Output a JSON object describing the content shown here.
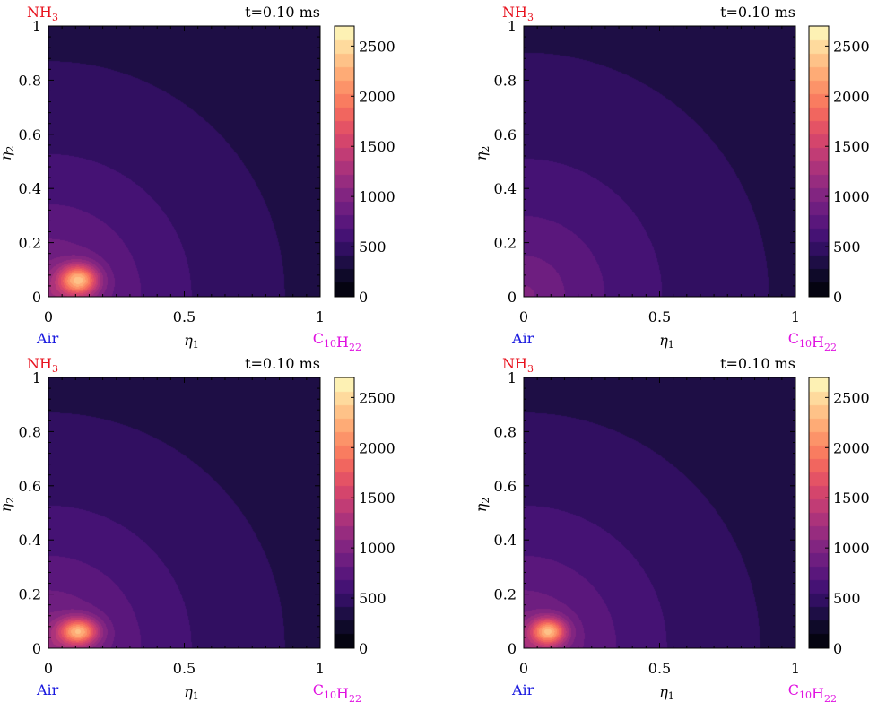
{
  "colors": {
    "nh3": "#e8131f",
    "air": "#1a1adf",
    "fuel": "#e011e0",
    "text": "#000000"
  },
  "chart_data": [
    {
      "type": "heatmap",
      "title": "t=0.10 ms",
      "x_label": "η1",
      "y_label": "η2",
      "corner_labels": {
        "top_left": "NH3",
        "bottom_left": "Air",
        "bottom_right": "C10H22"
      },
      "xlim": [
        0,
        1
      ],
      "ylim": [
        0,
        1
      ],
      "x_ticks": [
        "0",
        "0.5",
        "1"
      ],
      "y_ticks": [
        "0",
        "0.2",
        "0.4",
        "0.6",
        "0.8",
        "1"
      ],
      "colorbar": {
        "min": 0,
        "max": 2700,
        "ticks": [
          "0",
          "500",
          "1000",
          "1500",
          "2000",
          "2500"
        ],
        "colormap": "magma",
        "levels": 20
      },
      "field": {
        "background_temperature": 300,
        "corner_temperature": 1150,
        "decay_exponent": 2.4,
        "hotspot": {
          "x": 0.11,
          "y": 0.06,
          "peak": 2600,
          "sx": 0.05,
          "sy": 0.04
        }
      }
    },
    {
      "type": "heatmap",
      "title": "t=0.10 ms",
      "x_label": "η1",
      "y_label": "η2",
      "corner_labels": {
        "top_left": "NH3",
        "bottom_left": "Air",
        "bottom_right": "C10H22"
      },
      "xlim": [
        0,
        1
      ],
      "ylim": [
        0,
        1
      ],
      "x_ticks": [
        "0",
        "0.5",
        "1"
      ],
      "y_ticks": [
        "0",
        "0.2",
        "0.4",
        "0.6",
        "0.8",
        "1"
      ],
      "colorbar": {
        "min": 0,
        "max": 2700,
        "ticks": [
          "0",
          "500",
          "1000",
          "1500",
          "2000",
          "2500"
        ],
        "colormap": "magma",
        "levels": 20
      },
      "field": {
        "background_temperature": 300,
        "corner_temperature": 1000,
        "decay_exponent": 2.1,
        "hotspot": null
      }
    },
    {
      "type": "heatmap",
      "title": "t=0.10 ms",
      "x_label": "η1",
      "y_label": "η2",
      "corner_labels": {
        "top_left": "NH3",
        "bottom_left": "Air",
        "bottom_right": "C10H22"
      },
      "xlim": [
        0,
        1
      ],
      "ylim": [
        0,
        1
      ],
      "x_ticks": [
        "0",
        "0.5",
        "1"
      ],
      "y_ticks": [
        "0",
        "0.2",
        "0.4",
        "0.6",
        "0.8",
        "1"
      ],
      "colorbar": {
        "min": 0,
        "max": 2700,
        "ticks": [
          "0",
          "500",
          "1000",
          "1500",
          "2000",
          "2500"
        ],
        "colormap": "magma",
        "levels": 20
      },
      "field": {
        "background_temperature": 300,
        "corner_temperature": 1150,
        "decay_exponent": 2.4,
        "hotspot": {
          "x": 0.11,
          "y": 0.06,
          "peak": 2550,
          "sx": 0.05,
          "sy": 0.035
        }
      }
    },
    {
      "type": "heatmap",
      "title": "t=0.10 ms",
      "x_label": "η1",
      "y_label": "η2",
      "corner_labels": {
        "top_left": "NH3",
        "bottom_left": "Air",
        "bottom_right": "C10H22"
      },
      "xlim": [
        0,
        1
      ],
      "ylim": [
        0,
        1
      ],
      "x_ticks": [
        "0",
        "0.5",
        "1"
      ],
      "y_ticks": [
        "0",
        "0.2",
        "0.4",
        "0.6",
        "0.8",
        "1"
      ],
      "colorbar": {
        "min": 0,
        "max": 2700,
        "ticks": [
          "0",
          "500",
          "1000",
          "1500",
          "2000",
          "2500"
        ],
        "colormap": "magma",
        "levels": 20
      },
      "field": {
        "background_temperature": 300,
        "corner_temperature": 1150,
        "decay_exponent": 2.4,
        "hotspot": {
          "x": 0.09,
          "y": 0.06,
          "peak": 2550,
          "sx": 0.045,
          "sy": 0.035
        }
      }
    }
  ]
}
